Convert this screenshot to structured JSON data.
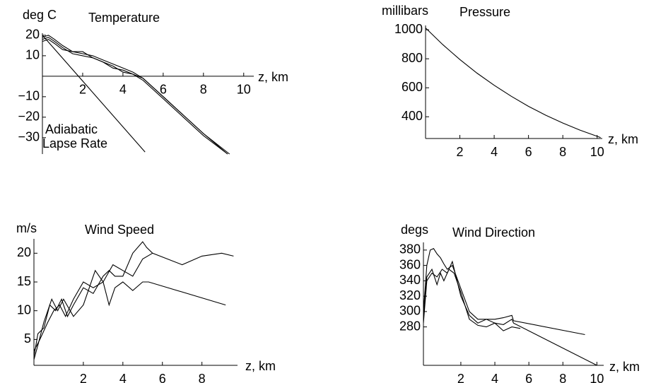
{
  "chart_data": [
    {
      "type": "line",
      "title": "Temperature",
      "y_label": "deg C",
      "x_label": "z, km",
      "color": "#000000",
      "annotations": [
        "Adiabatic",
        "Lapse Rate"
      ],
      "xlim": [
        0,
        10.5
      ],
      "ylim": [
        -38,
        21
      ],
      "xticks": [
        2,
        4,
        6,
        8,
        10
      ],
      "yticks": [
        20,
        10,
        {
          "value": -10,
          "label": "−10"
        },
        {
          "value": -20,
          "label": "−20"
        },
        {
          "value": -30,
          "label": "−30"
        }
      ],
      "series": [
        {
          "x": [
            0,
            5.1
          ],
          "values": [
            20,
            -37
          ]
        },
        {
          "x": [
            0,
            0.3,
            0.6,
            1,
            1.5,
            2,
            2.5,
            3,
            3.5,
            4,
            4.5,
            5,
            6,
            7,
            8,
            9.2
          ],
          "values": [
            19,
            20,
            18,
            15,
            12,
            11,
            10,
            8,
            6,
            4,
            2,
            -1,
            -10,
            -19,
            -28,
            -38
          ]
        },
        {
          "x": [
            0,
            0.3,
            0.6,
            1,
            1.5,
            2,
            2.5,
            3,
            3.5,
            4,
            4.5,
            5,
            6,
            7,
            8,
            9.3
          ],
          "values": [
            18,
            19,
            17,
            14,
            11,
            10,
            9,
            7,
            4,
            3,
            1,
            -1,
            -10,
            -19,
            -28,
            -38
          ]
        },
        {
          "x": [
            0,
            0.3,
            0.6,
            1,
            1.5,
            2,
            2.5,
            3,
            3.5,
            4,
            4.5,
            5,
            6,
            7,
            8,
            9.2
          ],
          "values": [
            17,
            18,
            16,
            13,
            12,
            12,
            9,
            7,
            5,
            2,
            1,
            -2,
            -11,
            -20,
            -29,
            -38
          ]
        }
      ]
    },
    {
      "type": "line",
      "title": "Pressure",
      "y_label": "millibars",
      "x_label": "z, km",
      "color": "#000000",
      "xlim": [
        0,
        10.3
      ],
      "ylim": [
        250,
        1030
      ],
      "xticks": [
        2,
        4,
        6,
        8,
        10
      ],
      "yticks": [
        400,
        600,
        800,
        1000
      ],
      "series": [
        {
          "x": [
            0,
            1,
            2,
            3,
            4,
            5,
            6,
            7,
            8,
            9,
            10,
            10.2
          ],
          "values": [
            1013,
            898,
            795,
            701,
            617,
            541,
            472,
            411,
            357,
            308,
            265,
            257
          ]
        }
      ]
    },
    {
      "type": "line",
      "title": "Wind Speed",
      "y_label": "m/s",
      "x_label": "z, km",
      "color": "#000000",
      "xlim": [
        -0.5,
        9.8
      ],
      "ylim": [
        0.5,
        22.5
      ],
      "xticks": [
        2,
        4,
        6,
        8
      ],
      "yticks": [
        5,
        10,
        15,
        20
      ],
      "series": [
        {
          "x": [
            -0.5,
            -0.3,
            0,
            0.3,
            0.6,
            0.9,
            1.2,
            1.5,
            2,
            2.5,
            3,
            3.3,
            3.6,
            4,
            4.5,
            5,
            5.2,
            5.5,
            7,
            8,
            9,
            9.6
          ],
          "values": [
            2,
            6,
            7,
            11,
            10,
            12,
            9,
            11,
            14,
            13,
            16,
            17,
            16,
            16,
            20,
            22,
            21,
            20,
            18,
            19.5,
            20,
            19.5
          ]
        },
        {
          "x": [
            -0.5,
            -0.2,
            0.2,
            0.5,
            0.8,
            1.1,
            1.5,
            2,
            2.5,
            3,
            3.3,
            3.6,
            4,
            4.5,
            5,
            5.3,
            9.2
          ],
          "values": [
            3,
            5,
            8,
            10,
            11,
            9,
            12,
            15,
            14,
            15,
            11,
            14,
            15,
            13.5,
            15,
            15,
            11
          ]
        },
        {
          "x": [
            -0.5,
            -0.3,
            0,
            0.4,
            0.7,
            1,
            1.5,
            2,
            2.6,
            3,
            3.5,
            4,
            4.5,
            5,
            5.5
          ],
          "values": [
            1.5,
            4,
            8,
            12,
            10,
            12,
            9,
            11,
            17,
            15,
            18,
            17,
            16,
            19,
            20
          ]
        }
      ]
    },
    {
      "type": "line",
      "title": "Wind Direction",
      "y_label": "degs",
      "x_label": "z, km",
      "color": "#000000",
      "xlim": [
        -0.2,
        10.4
      ],
      "ylim": [
        230,
        390
      ],
      "xticks": [
        2,
        4,
        6,
        8,
        10
      ],
      "yticks": [
        280,
        300,
        320,
        340,
        360,
        380
      ],
      "series": [
        {
          "x": [
            -0.2,
            0,
            0.2,
            0.4,
            0.6,
            0.8,
            1,
            1.2,
            1.5,
            2,
            2.5,
            3,
            3.5,
            4,
            4.5,
            5,
            5.1,
            9.3
          ],
          "values": [
            300,
            360,
            380,
            382,
            375,
            370,
            362,
            355,
            360,
            330,
            300,
            290,
            290,
            290,
            292,
            295,
            288,
            270
          ]
        },
        {
          "x": [
            -0.2,
            0,
            0.3,
            0.6,
            0.9,
            1.2,
            1.5,
            2,
            2.5,
            3,
            3.5,
            4,
            4.5,
            5,
            5.1,
            10
          ],
          "values": [
            285,
            340,
            350,
            345,
            355,
            350,
            365,
            320,
            295,
            285,
            290,
            285,
            283,
            290,
            285,
            230
          ]
        },
        {
          "x": [
            -0.2,
            0,
            0.3,
            0.6,
            0.8,
            1,
            1.3,
            1.6,
            2,
            2.5,
            3,
            3.5,
            4,
            4.5,
            5,
            5.5
          ],
          "values": [
            290,
            345,
            355,
            335,
            350,
            340,
            355,
            350,
            325,
            290,
            282,
            280,
            285,
            275,
            280,
            278
          ]
        }
      ]
    }
  ]
}
